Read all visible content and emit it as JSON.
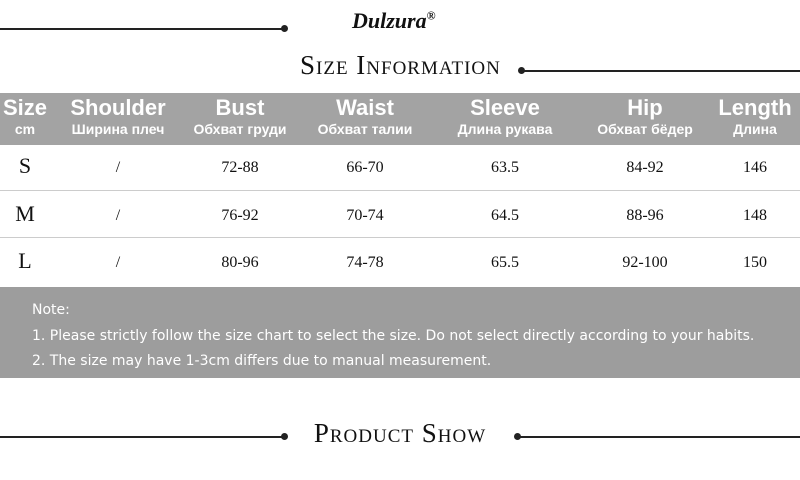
{
  "header": {
    "brand": "Dulzura",
    "brand_mark": "®",
    "title": "Size Information"
  },
  "table": {
    "columns": [
      {
        "name": "Size",
        "sub": "cm"
      },
      {
        "name": "Shoulder",
        "sub": "Ширина плеч"
      },
      {
        "name": "Bust",
        "sub": "Обхват груди"
      },
      {
        "name": "Waist",
        "sub": "Обхват талии"
      },
      {
        "name": "Sleeve",
        "sub": "Длина рукава"
      },
      {
        "name": "Hip",
        "sub": "Обхват бёдер"
      },
      {
        "name": "Length",
        "sub": "Длина"
      }
    ],
    "rows": [
      [
        "S",
        "/",
        "72-88",
        "66-70",
        "63.5",
        "84-92",
        "146"
      ],
      [
        "M",
        "/",
        "76-92",
        "70-74",
        "64.5",
        "88-96",
        "148"
      ],
      [
        "L",
        "/",
        "80-96",
        "74-78",
        "65.5",
        "92-100",
        "150"
      ]
    ]
  },
  "notes": {
    "title": "Note:",
    "items": [
      "1. Please strictly follow the size chart to select the size. Do not select directly according to your habits.",
      "2. The size may have 1-3cm differs due to manual measurement."
    ]
  },
  "footer": {
    "title": "Product Show"
  }
}
